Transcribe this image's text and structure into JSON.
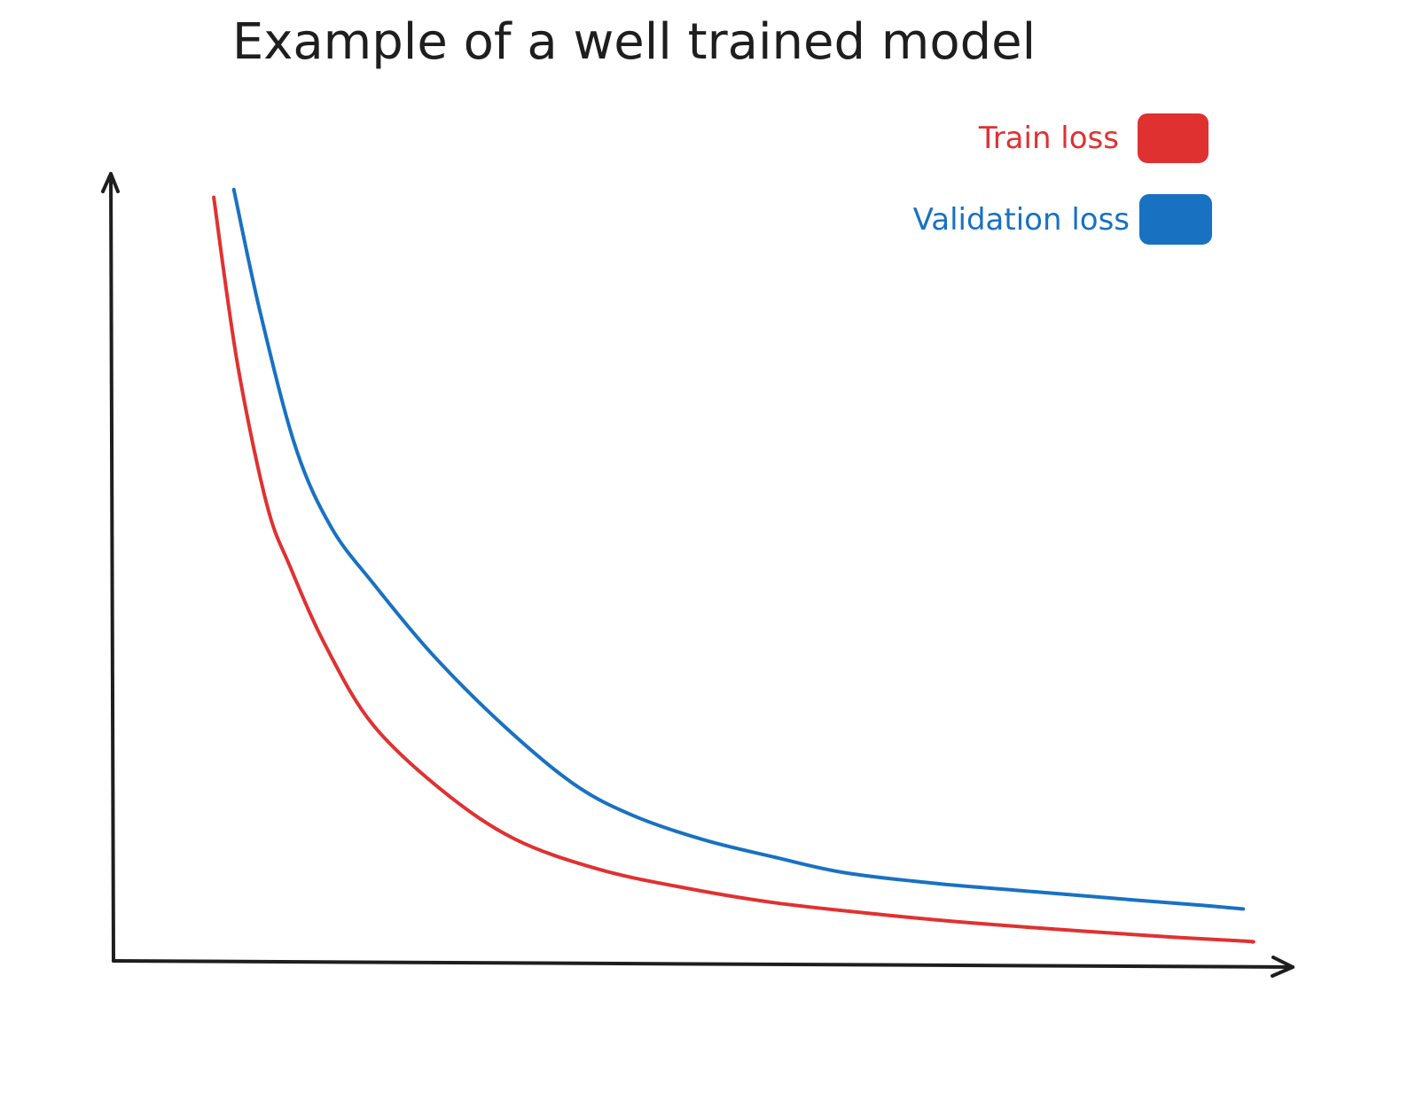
{
  "chart_data": {
    "type": "line",
    "title": "Example of a well trained model",
    "xlabel": "",
    "ylabel": "",
    "grid": false,
    "legend_placement": "top-right",
    "axis_color": "#1e1e1e",
    "xlim": [
      0,
      100
    ],
    "ylim": [
      0,
      100
    ],
    "series": [
      {
        "name": "Train loss",
        "color": "#e03131",
        "x": [
          8.5,
          10.5,
          13,
          15,
          18,
          22,
          28,
          34,
          41,
          48,
          56,
          65,
          73,
          82,
          90,
          96,
          96.6
        ],
        "y": [
          97,
          76,
          58,
          50,
          40,
          30,
          21.5,
          15.5,
          11.7,
          9.4,
          7.4,
          5.9,
          4.8,
          3.8,
          3.0,
          2.5,
          2.4
        ]
      },
      {
        "name": "Validation loss",
        "color": "#1971c2",
        "x": [
          10.2,
          12.5,
          15.5,
          18.5,
          22,
          27,
          33,
          39,
          44,
          50,
          56,
          62,
          70,
          78,
          86,
          92,
          95.8
        ],
        "y": [
          98,
          82,
          65,
          55,
          48,
          39,
          30,
          22.5,
          18.5,
          15.4,
          13.2,
          11.2,
          9.8,
          8.8,
          7.8,
          7.1,
          6.6
        ]
      }
    ]
  }
}
